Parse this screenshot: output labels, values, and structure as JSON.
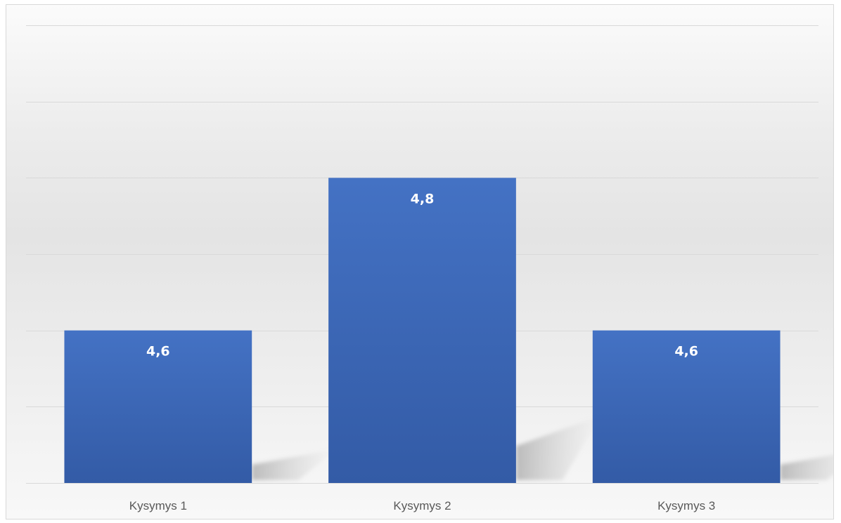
{
  "chart_data": {
    "type": "bar",
    "categories": [
      "Kysymys 1",
      "Kysymys 2",
      "Kysymys 3"
    ],
    "values": [
      4.6,
      4.8,
      4.6
    ],
    "data_labels": [
      "4,6",
      "4,8",
      "4,6"
    ],
    "title": "",
    "xlabel": "",
    "ylabel": "",
    "ylim": [
      4.4,
      5.0
    ],
    "y_gridline_step": 0.1,
    "y_axis_labels_visible": false,
    "grid": true,
    "legend": "none",
    "colors": {
      "bar_top": "#4472c4",
      "bar_bottom": "#335ba6",
      "gridline": "#d9d9d9",
      "label_text": "#595959",
      "data_label_text": "#ffffff"
    }
  }
}
